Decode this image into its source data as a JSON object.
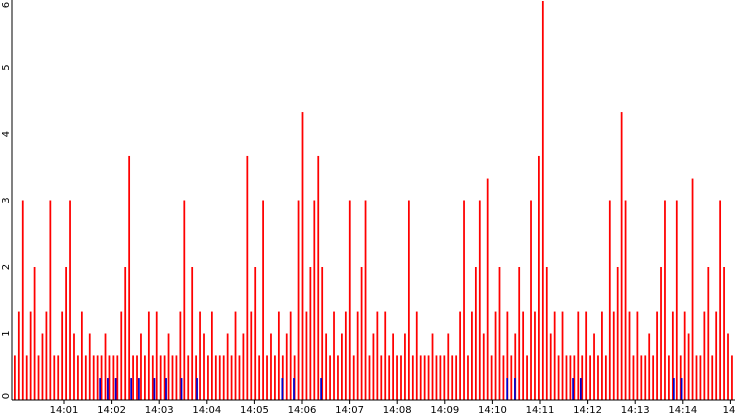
{
  "chart_data": {
    "type": "bar",
    "title": "",
    "xlabel": "",
    "ylabel": "",
    "ylim": [
      0,
      6
    ],
    "y_ticks": [
      "0",
      "1",
      "2",
      "3",
      "4",
      "5",
      "6"
    ],
    "x_tick_labels": [
      "14:01",
      "14:02",
      "14:03",
      "14:04",
      "14:05",
      "14:06",
      "14:07",
      "14:08",
      "14:09",
      "14:10",
      "14:11",
      "14:12",
      "14:13",
      "14:14",
      "14"
    ],
    "grid": false,
    "legend": "none",
    "colors": {
      "series_a": "#ff0000",
      "series_b": "#0000cc",
      "axis": "#000000"
    },
    "series": [
      {
        "values": [
          0.67,
          1.33,
          3.0,
          0.67,
          1.33,
          2.0,
          0.67,
          1.0,
          1.33,
          3.0,
          0.67,
          0.67,
          1.33,
          2.0,
          3.0,
          1.0,
          0.67,
          1.33,
          0.67,
          1.0,
          0.67,
          0.67,
          0.67,
          1.0,
          0.67,
          0.67,
          0.67,
          1.33,
          2.0,
          3.67,
          0.67,
          0.67,
          1.0,
          0.67,
          1.33,
          0.67,
          1.33,
          0.67,
          0.67,
          1.0,
          0.67,
          0.67,
          1.33,
          3.0,
          0.67,
          2.0,
          0.67,
          1.33,
          1.0,
          0.67,
          1.33,
          0.67,
          0.67,
          0.67,
          1.0,
          0.67,
          1.33,
          0.67,
          1.0,
          3.67,
          1.33,
          2.0,
          0.67,
          3.0,
          0.67,
          1.0,
          0.67,
          1.33,
          0.67,
          1.0,
          1.33,
          0.67,
          3.0,
          4.33,
          1.33,
          2.0,
          3.0,
          3.67,
          2.0,
          1.0,
          0.67,
          1.33,
          0.67,
          1.0,
          1.33,
          3.0,
          0.67,
          1.33,
          2.0,
          3.0,
          0.67,
          1.0,
          1.33,
          0.67,
          1.33,
          0.67,
          1.0,
          0.67,
          0.67,
          1.0,
          3.0,
          0.67,
          1.33,
          0.67,
          0.67,
          0.67,
          1.0,
          0.67,
          0.67,
          0.67,
          1.0,
          0.67,
          0.67,
          1.33,
          3.0,
          0.67,
          1.33,
          2.0,
          3.0,
          1.0,
          3.33,
          0.67,
          1.33,
          2.0,
          0.67,
          1.33,
          0.67,
          1.0,
          2.0,
          1.33,
          0.67,
          3.0,
          1.33,
          3.67,
          6.0,
          2.0,
          1.0,
          1.33,
          0.67,
          1.33,
          0.67,
          0.67,
          0.67,
          1.33,
          0.67,
          1.33,
          0.67,
          1.0,
          0.67,
          1.33,
          0.67,
          3.0,
          1.33,
          2.0,
          4.33,
          3.0,
          1.33,
          0.67,
          1.33,
          0.67,
          0.67,
          1.0,
          0.67,
          1.33,
          2.0,
          3.0,
          0.67,
          1.33,
          3.0,
          0.67,
          1.33,
          1.0,
          3.33,
          0.67,
          0.67,
          1.33,
          2.0,
          0.67,
          1.33,
          3.0,
          2.0,
          1.0,
          0.67
        ],
        "color": "#ff0000"
      },
      {
        "values": [
          0.0,
          0.0,
          0.0,
          0.0,
          0.0,
          0.0,
          0.0,
          0.0,
          0.0,
          0.0,
          0.0,
          0.0,
          0.0,
          0.0,
          0.0,
          0.0,
          0.0,
          0.0,
          0.0,
          0.0,
          0.0,
          0.0,
          0.33,
          0.0,
          0.33,
          0.0,
          0.33,
          0.0,
          0.0,
          0.0,
          0.33,
          0.0,
          0.33,
          0.0,
          0.0,
          0.0,
          0.33,
          0.0,
          0.0,
          0.33,
          0.0,
          0.0,
          0.0,
          0.33,
          0.0,
          0.0,
          0.0,
          0.33,
          0.0,
          0.0,
          0.0,
          0.0,
          0.0,
          0.0,
          0.0,
          0.0,
          0.0,
          0.0,
          0.0,
          0.0,
          0.0,
          0.0,
          0.0,
          0.0,
          0.0,
          0.0,
          0.0,
          0.0,
          0.0,
          0.33,
          0.0,
          0.0,
          0.33,
          0.0,
          0.0,
          0.0,
          0.0,
          0.0,
          0.0,
          0.33,
          0.0,
          0.0,
          0.0,
          0.0,
          0.0,
          0.0,
          0.0,
          0.0,
          0.0,
          0.0,
          0.0,
          0.0,
          0.0,
          0.0,
          0.0,
          0.0,
          0.0,
          0.0,
          0.0,
          0.0,
          0.0,
          0.0,
          0.0,
          0.0,
          0.0,
          0.0,
          0.0,
          0.0,
          0.0,
          0.0,
          0.0,
          0.0,
          0.0,
          0.0,
          0.0,
          0.0,
          0.0,
          0.0,
          0.0,
          0.0,
          0.0,
          0.0,
          0.0,
          0.0,
          0.0,
          0.0,
          0.0,
          0.33,
          0.0,
          0.33,
          0.0,
          0.0,
          0.0,
          0.0,
          0.0,
          0.0,
          0.0,
          0.0,
          0.0,
          0.0,
          0.0,
          0.0,
          0.0,
          0.0,
          0.33,
          0.0,
          0.33,
          0.0,
          0.0,
          0.0,
          0.0,
          0.0,
          0.0,
          0.0,
          0.0,
          0.0,
          0.0,
          0.0,
          0.0,
          0.0,
          0.0,
          0.0,
          0.0,
          0.0,
          0.0,
          0.0,
          0.0,
          0.0,
          0.0,
          0.0,
          0.33,
          0.0,
          0.33,
          0.0,
          0.0,
          0.0,
          0.0,
          0.0,
          0.0,
          0.0,
          0.0,
          0.0,
          0.0,
          0.0,
          0.0,
          0.0
        ],
        "color": "#0000cc"
      }
    ]
  }
}
